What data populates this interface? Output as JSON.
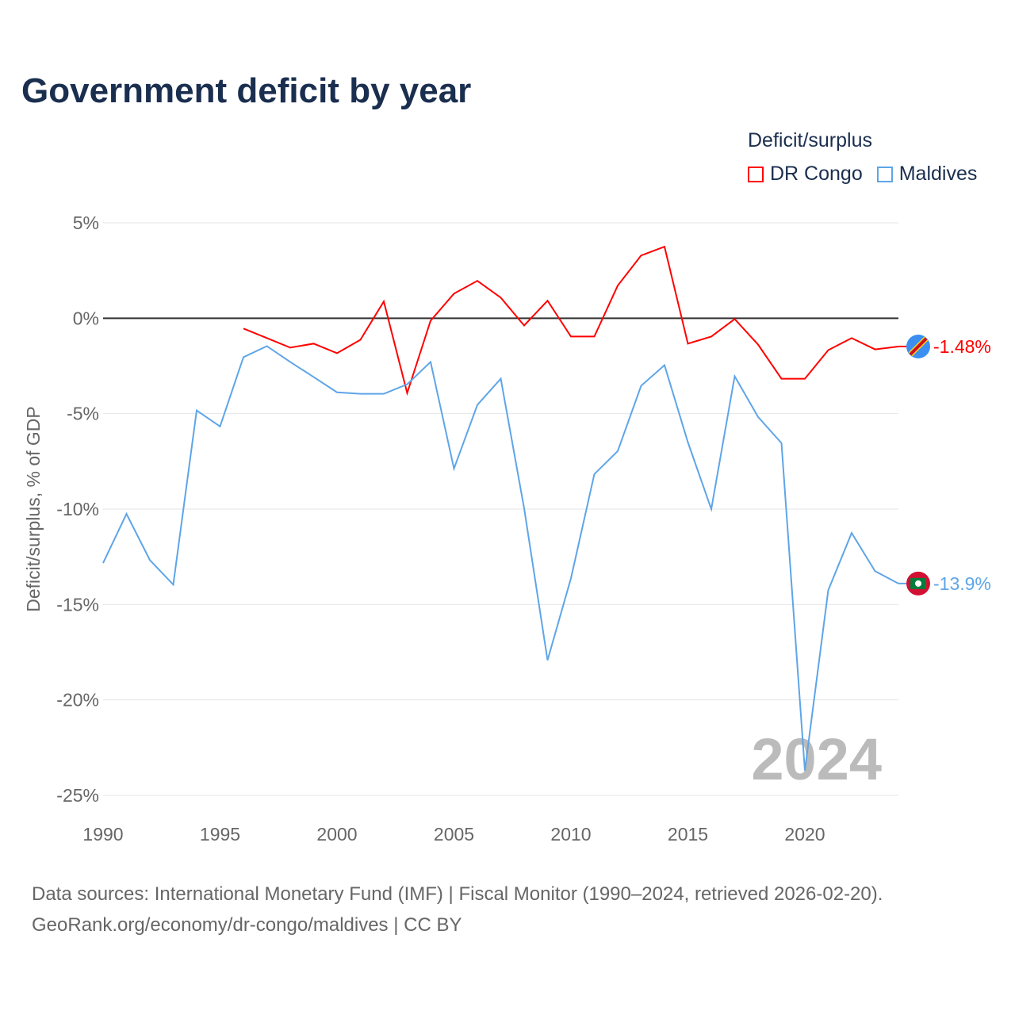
{
  "title": "Government deficit by year",
  "legend": {
    "title": "Deficit/surplus",
    "items": [
      {
        "label": "DR Congo",
        "color": "#ff0000"
      },
      {
        "label": "Maldives",
        "color": "#5ea5e8"
      }
    ]
  },
  "footer": {
    "line1": "Data sources: International Monetary Fund (IMF) | Fiscal Monitor (1990–2024, retrieved 2026-02-20).",
    "line2": "GeoRank.org/economy/dr-congo/maldives | CC BY"
  },
  "chart_data": {
    "type": "line",
    "title": "Government deficit by year",
    "xlabel": "",
    "ylabel": "Deficit/surplus, % of GDP",
    "xlim": [
      1990,
      2024
    ],
    "ylim": [
      -25,
      5
    ],
    "xticks": [
      1990,
      1995,
      2000,
      2005,
      2010,
      2015,
      2020
    ],
    "xtick_labels": [
      "1990",
      "1995",
      "2000",
      "2005",
      "2010",
      "2015",
      "2020"
    ],
    "yticks": [
      5,
      0,
      -5,
      -10,
      -15,
      -20,
      -25
    ],
    "ytick_labels": [
      "5%",
      "0%",
      "-5%",
      "-10%",
      "-15%",
      "-20%",
      "-25%"
    ],
    "watermark": "2024",
    "series": [
      {
        "name": "DR Congo",
        "color": "#ff0000",
        "end_label": "-1.48%",
        "x": [
          1996,
          1997,
          1998,
          1999,
          2000,
          2001,
          2002,
          2003,
          2004,
          2005,
          2006,
          2007,
          2008,
          2009,
          2010,
          2011,
          2012,
          2013,
          2014,
          2015,
          2016,
          2017,
          2018,
          2019,
          2020,
          2021,
          2022,
          2023,
          2024
        ],
        "values": [
          -0.54,
          -1.04,
          -1.54,
          -1.33,
          -1.83,
          -1.13,
          0.88,
          -3.92,
          -0.13,
          1.29,
          1.96,
          1.08,
          -0.38,
          0.92,
          -0.96,
          -0.96,
          1.71,
          3.29,
          3.75,
          -1.33,
          -0.96,
          -0.04,
          -1.38,
          -3.17,
          -3.17,
          -1.67,
          -1.04,
          -1.63,
          -1.48
        ]
      },
      {
        "name": "Maldives",
        "color": "#5ea5e8",
        "end_label": "-13.9%",
        "x": [
          1990,
          1991,
          1992,
          1993,
          1994,
          1995,
          1996,
          1997,
          1998,
          1999,
          2000,
          2001,
          2002,
          2003,
          2004,
          2005,
          2006,
          2007,
          2008,
          2009,
          2010,
          2011,
          2012,
          2013,
          2014,
          2015,
          2016,
          2017,
          2018,
          2019,
          2020,
          2021,
          2022,
          2023,
          2024
        ],
        "values": [
          -12.83,
          -10.25,
          -12.67,
          -13.96,
          -4.83,
          -5.67,
          -2.04,
          -1.46,
          -2.29,
          -3.08,
          -3.88,
          -3.96,
          -3.96,
          -3.46,
          -2.29,
          -7.88,
          -4.54,
          -3.17,
          -9.96,
          -17.92,
          -13.63,
          -8.17,
          -6.96,
          -3.54,
          -2.46,
          -6.5,
          -10,
          -3.04,
          -5.17,
          -6.54,
          -23.7,
          -14.25,
          -11.25,
          -13.25,
          -13.9
        ]
      }
    ]
  }
}
